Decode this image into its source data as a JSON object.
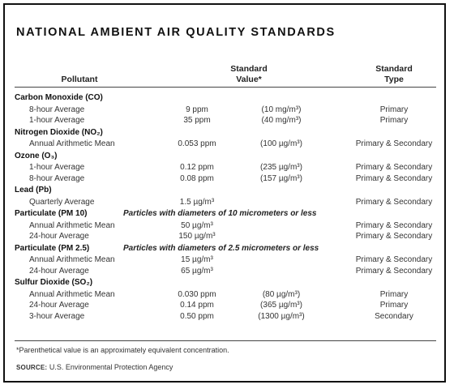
{
  "title": "NATIONAL AMBIENT AIR QUALITY STANDARDS",
  "headers": {
    "pollutant": "Pollutant",
    "value_line1": "Standard",
    "value_line2": "Value*",
    "type_line1": "Standard",
    "type_line2": "Type"
  },
  "groups": [
    {
      "name": "Carbon Monoxide (CO)",
      "note": "",
      "rows": [
        {
          "label": "8-hour Average",
          "value": "9 ppm",
          "equiv": "(10 mg/m³)",
          "type": "Primary"
        },
        {
          "label": "1-hour Average",
          "value": "35 ppm",
          "equiv": "(40 mg/m³)",
          "type": "Primary"
        }
      ]
    },
    {
      "name": "Nitrogen Dioxide (NO₂)",
      "note": "",
      "rows": [
        {
          "label": "Annual Arithmetic Mean",
          "value": "0.053 ppm",
          "equiv": "(100 µg/m³)",
          "type": "Primary & Secondary"
        }
      ]
    },
    {
      "name": "Ozone (O₃)",
      "note": "",
      "rows": [
        {
          "label": "1-hour Average",
          "value": "0.12 ppm",
          "equiv": "(235 µg/m³)",
          "type": "Primary & Secondary"
        },
        {
          "label": "8-hour Average",
          "value": "0.08 ppm",
          "equiv": "(157 µg/m³)",
          "type": "Primary & Secondary"
        }
      ]
    },
    {
      "name": "Lead (Pb)",
      "note": "",
      "rows": [
        {
          "label": "Quarterly Average",
          "value": "1.5 µg/m³",
          "equiv": "",
          "type": "Primary & Secondary"
        }
      ]
    },
    {
      "name": "Particulate (PM 10)",
      "note": "Particles with diameters of 10 micrometers or less",
      "rows": [
        {
          "label": "Annual Arithmetic Mean",
          "value": "50 µg/m³",
          "equiv": "",
          "type": "Primary & Secondary"
        },
        {
          "label": "24-hour Average",
          "value": "150 µg/m³",
          "equiv": "",
          "type": "Primary & Secondary"
        }
      ]
    },
    {
      "name": "Particulate (PM 2.5)",
      "note": "Particles with diameters of 2.5 micrometers or less",
      "rows": [
        {
          "label": "Annual Arithmetic Mean",
          "value": "15 µg/m³",
          "equiv": "",
          "type": "Primary & Secondary"
        },
        {
          "label": "24-hour Average",
          "value": "65 µg/m³",
          "equiv": "",
          "type": "Primary & Secondary"
        }
      ]
    },
    {
      "name": "Sulfur Dioxide (SO₂)",
      "note": "",
      "rows": [
        {
          "label": "Annual Arithmetic Mean",
          "value": "0.030 ppm",
          "equiv": "(80 µg/m³)",
          "type": "Primary"
        },
        {
          "label": "24-hour Average",
          "value": "0.14 ppm",
          "equiv": "(365 µg/m³)",
          "type": "Primary"
        },
        {
          "label": "3-hour Average",
          "value": "0.50 ppm",
          "equiv": "(1300 µg/m³)",
          "type": "Secondary"
        }
      ]
    }
  ],
  "footnote": "*Parenthetical value is an approximately equivalent concentration.",
  "source_label": "SOURCE:",
  "source_text": "U.S. Environmental Protection Agency"
}
